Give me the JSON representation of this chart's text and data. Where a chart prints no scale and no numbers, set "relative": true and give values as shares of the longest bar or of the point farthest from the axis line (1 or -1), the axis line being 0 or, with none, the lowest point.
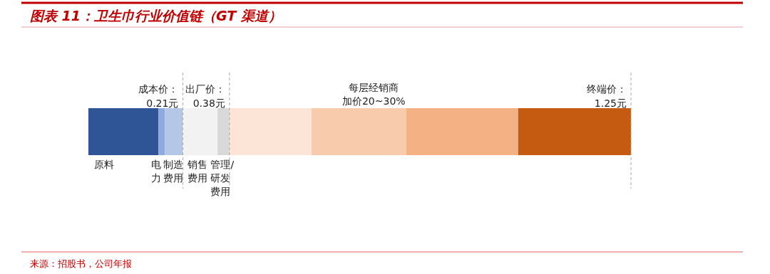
{
  "chart_data": {
    "type": "bar",
    "title": "图表 11：卫生巾行业价值链（GT 渠道）",
    "orientation": "horizontal",
    "stacked": true,
    "relative": true,
    "categories": [
      null
    ],
    "series": [
      {
        "name": "原料",
        "color": "#2f5597",
        "values": [
          0.129
        ]
      },
      {
        "name": "电力",
        "color": "#8faadc",
        "values": [
          0.012
        ]
      },
      {
        "name": "制造费用",
        "color": "#b4c7e7",
        "values": [
          0.033
        ]
      },
      {
        "name": "销售费用",
        "color": "#f2f2f2",
        "values": [
          0.064
        ]
      },
      {
        "name": "管理/研发费用",
        "color": "#d9d9d9",
        "values": [
          0.022
        ]
      },
      {
        "color": "#fce4d6",
        "values": [
          0.151
        ]
      },
      {
        "color": "#f8cbad",
        "values": [
          0.175
        ]
      },
      {
        "color": "#f4b183",
        "values": [
          0.206
        ]
      },
      {
        "color": "#c55a11",
        "values": [
          0.208
        ]
      }
    ],
    "ref_lines": [
      {
        "axis": "x",
        "value": 0.174,
        "label": "成本价：\n0.21元",
        "line_style": "dashed",
        "color": "#a6a6a6"
      },
      {
        "axis": "x",
        "value": 0.26,
        "label": "出厂价：\n0.38元",
        "line_style": "dashed",
        "color": "#a6a6a6"
      },
      {
        "axis": "x",
        "value": 1,
        "label": "终端价：\n1.25元",
        "line_style": "dashed",
        "color": "#a6a6a6"
      }
    ],
    "annotations": [
      "每层经销商加价20~30%",
      "来源：招股书，公司年报"
    ]
  }
}
